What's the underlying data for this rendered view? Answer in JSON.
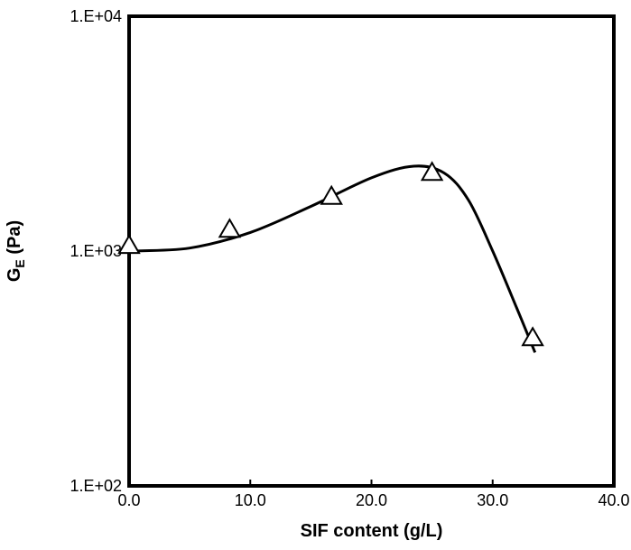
{
  "chart_data": {
    "type": "scatter",
    "title": "",
    "xlabel": "SIF content (g/L)",
    "ylabel_main": "G",
    "ylabel_sub": "E",
    "ylabel_unit": " (Pa)",
    "xlim": [
      0,
      40
    ],
    "ylim": [
      100,
      10000
    ],
    "yscale": "log",
    "grid": false,
    "legend": "none",
    "x_ticks": [
      0,
      10,
      20,
      30,
      40
    ],
    "x_tick_labels": [
      "0.0",
      "10.0",
      "20.0",
      "30.0",
      "40.0"
    ],
    "y_ticks": [
      100,
      1000,
      10000
    ],
    "y_tick_labels": [
      "1.E+02",
      "1.E+03",
      "1.E+04"
    ],
    "series": [
      {
        "marker": "open-triangle",
        "x": [
          0,
          8.3,
          16.7,
          25,
          33.3
        ],
        "y": [
          1050,
          1230,
          1700,
          2150,
          425
        ]
      }
    ],
    "trend_line": {
      "style": "smooth-curve",
      "x": [
        0,
        5,
        10,
        15,
        20,
        23.5,
        26,
        28,
        30,
        32,
        33.5
      ],
      "y": [
        1000,
        1030,
        1200,
        1550,
        2050,
        2300,
        2150,
        1650,
        1000,
        570,
        370
      ]
    },
    "colors": {
      "axis": "#000000",
      "line": "#000000",
      "marker_fill": "#ffffff"
    }
  }
}
